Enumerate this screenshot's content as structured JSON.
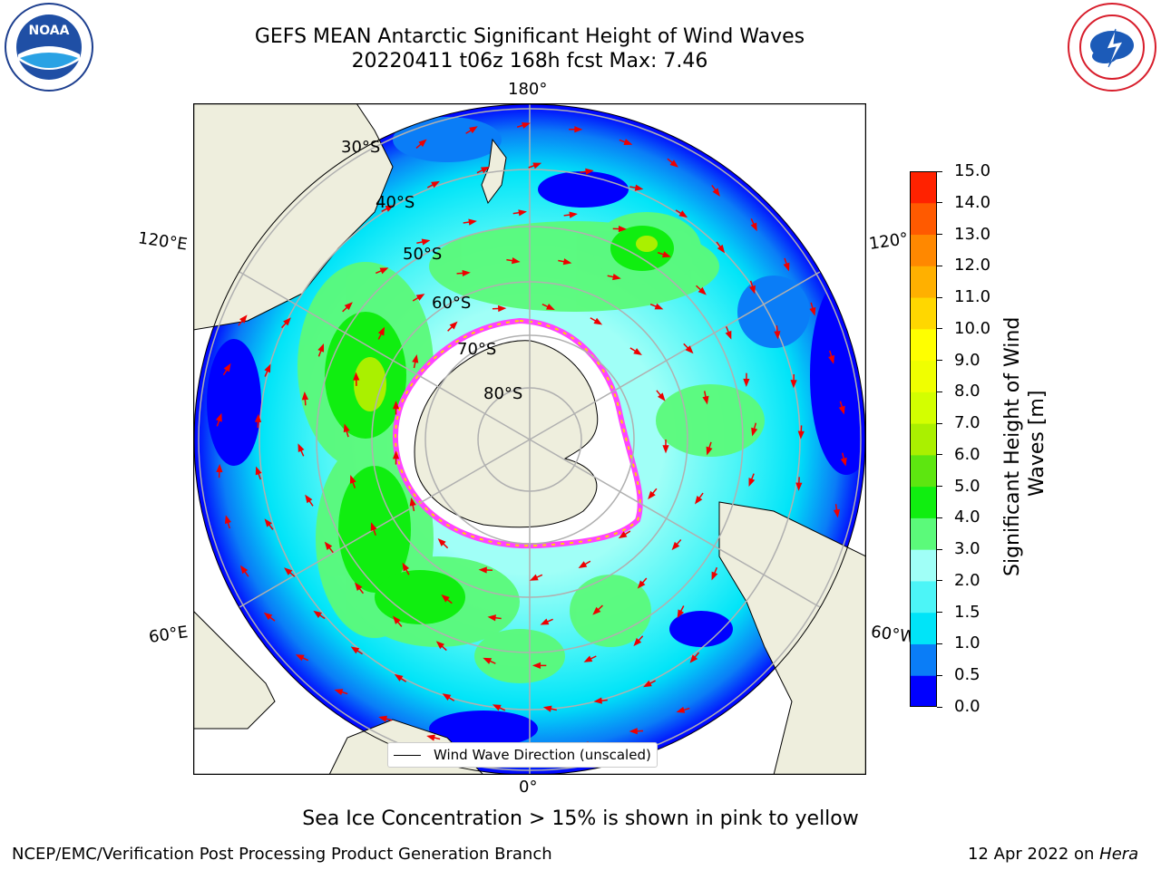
{
  "title": "GEFS MEAN Antarctic Significant Height of Wind Waves",
  "subtitle": "20220411 t06z 168h fcst   Max: 7.46",
  "map": {
    "lon_labels": [
      "180°",
      "120°E",
      "120°",
      "60°E",
      "60°W",
      "0°"
    ],
    "lat_labels": [
      "30°S",
      "40°S",
      "50°S",
      "60°S",
      "70°S",
      "80°S"
    ],
    "legend_label": "Wind Wave Direction (unscaled)",
    "note": "Sea Ice Concentration > 15% is shown in pink to yellow",
    "colors": {
      "land": "#eeeedd",
      "ice": "#ffffff",
      "ice_edge": "#ff44ff",
      "arrow": "#ee0000",
      "grid": "#b0b0b0"
    }
  },
  "colorbar": {
    "label": "Significant Height of Wind Waves [m]",
    "label_line1": "Significant Height of Wind",
    "label_line2": "Waves [m]",
    "ticks": [
      "0.0",
      "0.5",
      "1.0",
      "1.5",
      "2.0",
      "3.0",
      "4.0",
      "5.0",
      "6.0",
      "7.0",
      "8.0",
      "9.0",
      "10.0",
      "11.0",
      "12.0",
      "13.0",
      "14.0",
      "15.0"
    ],
    "colors": [
      "#0000ff",
      "#0a7df7",
      "#00e4f8",
      "#4cf5f7",
      "#a0fff7",
      "#5bfa7a",
      "#10ee10",
      "#5de610",
      "#aaf000",
      "#d3ff00",
      "#f0ff00",
      "#ffff00",
      "#ffd700",
      "#ffb000",
      "#ff8800",
      "#ff5a00",
      "#ff2200"
    ]
  },
  "logos": {
    "left": "NOAA",
    "right": "NATIONAL WEATHER SERVICE"
  },
  "footer": {
    "left": "NCEP/EMC/Verification Post Processing Product Generation Branch",
    "right_prefix": "12 Apr 2022 on ",
    "right_host": "Hera"
  }
}
